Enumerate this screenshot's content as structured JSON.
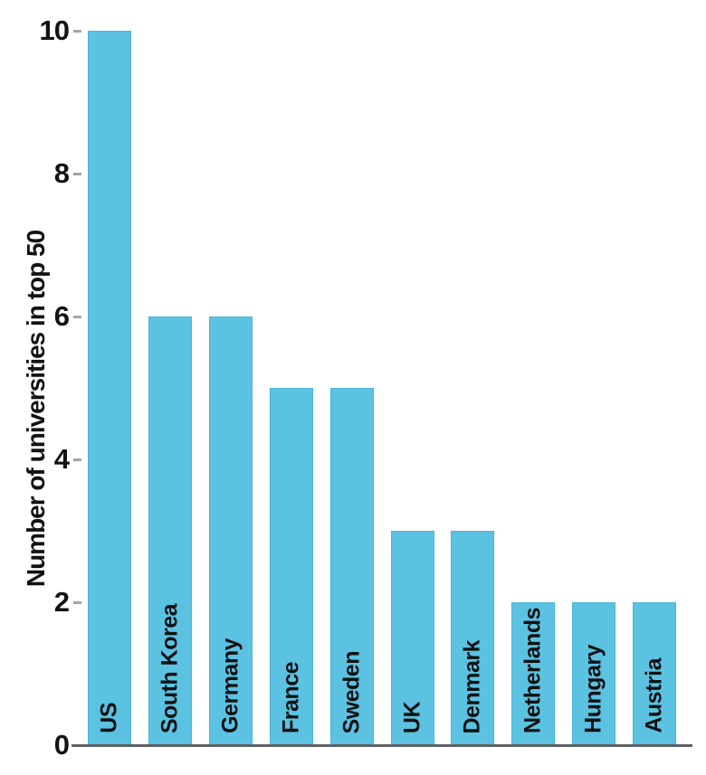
{
  "chart_data": {
    "type": "bar",
    "title": "",
    "categories": [
      "US",
      "South Korea",
      "Germany",
      "France",
      "Sweden",
      "UK",
      "Denmark",
      "Netherlands",
      "Hungary",
      "Austria"
    ],
    "values": [
      10,
      6,
      6,
      5,
      5,
      3,
      3,
      2,
      2,
      2
    ],
    "xlabel": "",
    "ylabel": "Number of universities in top 50",
    "ylim": [
      0,
      10
    ],
    "yticks": [
      0,
      2,
      4,
      6,
      8,
      10
    ],
    "grid": false,
    "legend": "none",
    "bar_color": "#5BC2E2",
    "bar_edge_color": "#49B5D8",
    "axis_line_color": "#606164",
    "tick_mark_color": "#A3A5A8",
    "text_color": "#121212",
    "background_color": "#FFFFFF"
  }
}
